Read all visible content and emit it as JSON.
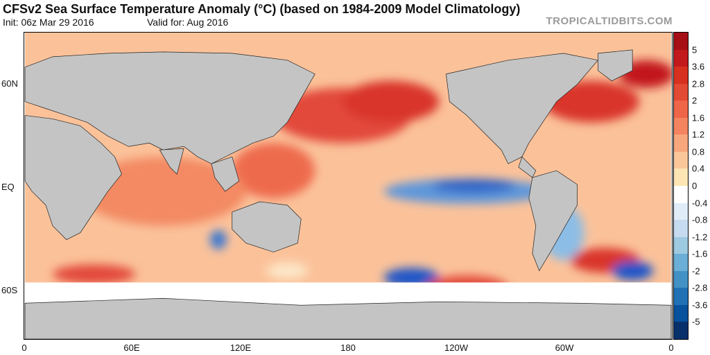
{
  "title": "CFSv2 Sea Surface Temperature Anomaly (°C) (based on 1984-2009 Model Climatology)",
  "init": "Init: 06z Mar 29 2016",
  "valid": "Valid for: Aug 2016",
  "brand": "TROPICALTIDBITS.COM",
  "lat_labels": [
    "60N",
    "EQ",
    "60S"
  ],
  "lon_labels": [
    "0",
    "60E",
    "120E",
    "180",
    "120W",
    "60W",
    "0"
  ],
  "colorbar": {
    "labels": [
      "5",
      "3.6",
      "2.8",
      "2",
      "1.6",
      "1.2",
      "0.8",
      "0.4",
      "0",
      "-0.4",
      "-0.8",
      "-1.2",
      "-1.6",
      "-2",
      "-2.8",
      "-3.6",
      "-5"
    ],
    "colors": [
      "#a50f15",
      "#c2191d",
      "#d7301f",
      "#e34a33",
      "#ef6548",
      "#f4845f",
      "#f8a77c",
      "#fbc79a",
      "#fde6b4",
      "#ffffff",
      "#e0ecf8",
      "#c6dbef",
      "#9ecae1",
      "#6baed6",
      "#4292c6",
      "#2171b5",
      "#08519c",
      "#08306b"
    ]
  },
  "colors": {
    "land": "#c4c4c4",
    "ocean_warm": "#f6a073",
    "ocean_hot": "#d9352a",
    "ocean_cool": "#6ea6dc",
    "ocean_cold": "#1f55c8",
    "ocean_neutral": "#fde7c8"
  }
}
